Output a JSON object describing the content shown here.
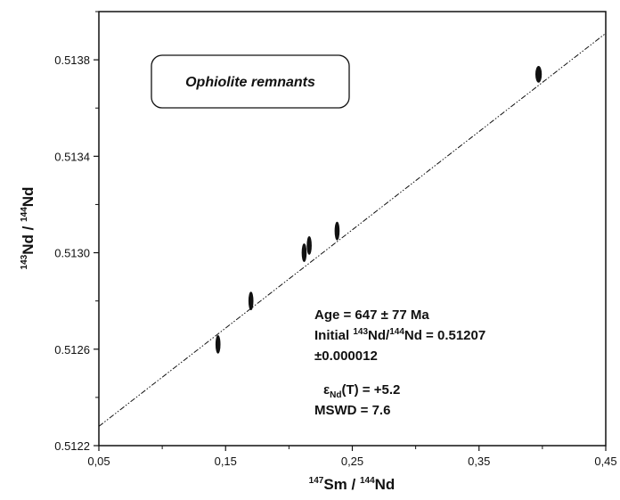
{
  "chart_data": {
    "type": "scatter",
    "title": "",
    "xlabel": {
      "sup1": "147",
      "main1": "Sm / ",
      "sup2": "144",
      "main2": "Nd"
    },
    "ylabel": {
      "sup1": "143",
      "main1": "Nd / ",
      "sup2": "144",
      "main2": "Nd"
    },
    "xlim": [
      0.05,
      0.45
    ],
    "ylim": [
      0.5122,
      0.514
    ],
    "x_ticks": [
      {
        "value": 0.05,
        "label": "0,05"
      },
      {
        "value": 0.15,
        "label": "0,15"
      },
      {
        "value": 0.25,
        "label": "0,25"
      },
      {
        "value": 0.35,
        "label": "0,35"
      },
      {
        "value": 0.45,
        "label": "0,45"
      }
    ],
    "y_ticks": [
      {
        "value": 0.5122,
        "label": "0.5122"
      },
      {
        "value": 0.5126,
        "label": "0.5126"
      },
      {
        "value": 0.513,
        "label": "0.5130"
      },
      {
        "value": 0.5134,
        "label": "0.5134"
      },
      {
        "value": 0.5138,
        "label": "0.5138"
      }
    ],
    "grid": false,
    "points": [
      {
        "x": 0.144,
        "y": 0.51262
      },
      {
        "x": 0.17,
        "y": 0.5128
      },
      {
        "x": 0.212,
        "y": 0.513
      },
      {
        "x": 0.216,
        "y": 0.51303
      },
      {
        "x": 0.238,
        "y": 0.51309
      },
      {
        "x": 0.397,
        "y": 0.51374
      }
    ],
    "isochron": {
      "x": [
        0.05,
        0.45
      ],
      "y": [
        0.51228,
        0.51391
      ]
    },
    "legend_box": {
      "label": "Ophiolite remnants",
      "placement": "top-left"
    },
    "annotations": {
      "age": "Age = 647 ± 77 Ma",
      "initial_prefix": "Initial ",
      "initial_sup1": "143",
      "initial_mid": "Nd/",
      "initial_sup2": "144",
      "initial_suffix": "Nd = 0.51207",
      "initial_error": "±0.000012",
      "epsilon_symbol": "ε",
      "epsilon_sub": "Nd",
      "epsilon_rest": "(T) = +5.2",
      "mswd": "MSWD = 7.6"
    }
  }
}
